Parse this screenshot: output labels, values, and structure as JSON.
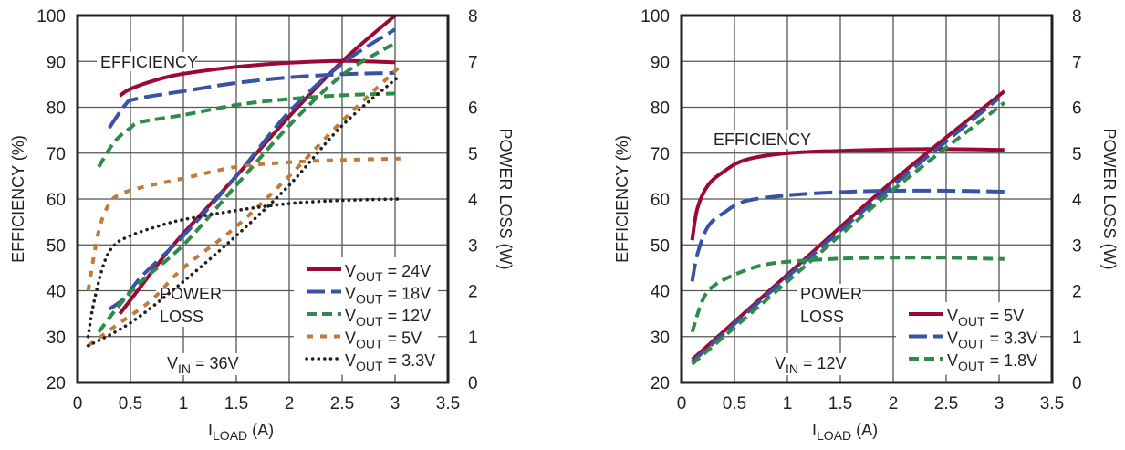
{
  "chart_data": [
    {
      "type": "line",
      "title": "",
      "xlabel": "I_LOAD (A)",
      "xlabel_main": "I",
      "xlabel_sub": "LOAD",
      "xlabel_unit": " (A)",
      "ylabel": "EFFICIENCY (%)",
      "y2label": "POWER LOSS (W)",
      "xlim": [
        0,
        3.5
      ],
      "ylim": [
        20,
        100
      ],
      "y2lim": [
        0,
        8
      ],
      "x_ticks": [
        "0",
        "0.5",
        "1",
        "1.5",
        "2",
        "2.5",
        "3",
        "3.5"
      ],
      "y_ticks": [
        "20",
        "30",
        "40",
        "50",
        "60",
        "70",
        "80",
        "90",
        "100"
      ],
      "y2_ticks": [
        "0",
        "1",
        "2",
        "3",
        "4",
        "5",
        "6",
        "7",
        "8"
      ],
      "grid": true,
      "legend_position": "bottom-right",
      "annotations": {
        "efficiency": "EFFICIENCY",
        "power_loss_1": "POWER",
        "power_loss_2": "LOSS",
        "vin_main": "V",
        "vin_sub": "IN",
        "vin_value": " = 36V"
      },
      "series": [
        {
          "name": "VOUT = 24V",
          "label_sub": "OUT",
          "label_value": " = 24V",
          "color": "#9b0a33",
          "style": "solid",
          "efficiency": [
            [
              0.4,
              82.5
            ],
            [
              0.5,
              84
            ],
            [
              0.75,
              86
            ],
            [
              1,
              87.3
            ],
            [
              1.5,
              88.8
            ],
            [
              2,
              89.7
            ],
            [
              2.5,
              90.1
            ],
            [
              3,
              89.8
            ]
          ],
          "power_loss": [
            [
              0.4,
              1.5
            ],
            [
              0.6,
              2.1
            ],
            [
              0.8,
              2.7
            ],
            [
              1,
              3.25
            ],
            [
              1.5,
              4.5
            ],
            [
              2,
              5.8
            ],
            [
              2.5,
              7.0
            ],
            [
              3,
              8.0
            ]
          ]
        },
        {
          "name": "VOUT = 18V",
          "label_sub": "OUT",
          "label_value": " = 18V",
          "color": "#3953a4",
          "style": "longdash",
          "efficiency": [
            [
              0.3,
              75.5
            ],
            [
              0.45,
              80.5
            ],
            [
              0.55,
              81.8
            ],
            [
              1,
              83.5
            ],
            [
              1.5,
              85.3
            ],
            [
              2,
              86.5
            ],
            [
              2.5,
              87.2
            ],
            [
              3,
              87.5
            ]
          ],
          "power_loss": [
            [
              0.3,
              1.6
            ],
            [
              0.45,
              1.85
            ],
            [
              0.6,
              2.3
            ],
            [
              1,
              3.2
            ],
            [
              1.5,
              4.5
            ],
            [
              2,
              5.9
            ],
            [
              2.5,
              6.95
            ],
            [
              3,
              7.7
            ]
          ]
        },
        {
          "name": "VOUT = 12V",
          "label_sub": "OUT",
          "label_value": " = 12V",
          "color": "#2e8b4a",
          "style": "dash",
          "efficiency": [
            [
              0.2,
              67
            ],
            [
              0.35,
              72.5
            ],
            [
              0.5,
              75.5
            ],
            [
              0.6,
              76.8
            ],
            [
              1,
              78.3
            ],
            [
              1.5,
              80.5
            ],
            [
              2,
              81.8
            ],
            [
              2.5,
              82.6
            ],
            [
              3,
              83
            ]
          ],
          "power_loss": [
            [
              0.2,
              1.1
            ],
            [
              0.4,
              1.7
            ],
            [
              0.6,
              2.2
            ],
            [
              1,
              3.0
            ],
            [
              1.5,
              4.3
            ],
            [
              2,
              5.6
            ],
            [
              2.5,
              6.7
            ],
            [
              3,
              7.4
            ]
          ]
        },
        {
          "name": "VOUT = 5V",
          "label_sub": "OUT",
          "label_value": " = 5V",
          "color": "#c07a3a",
          "style": "shortdash",
          "efficiency": [
            [
              0.1,
              40
            ],
            [
              0.2,
              53
            ],
            [
              0.3,
              59
            ],
            [
              0.4,
              61
            ],
            [
              0.6,
              62.5
            ],
            [
              1,
              64.5
            ],
            [
              1.5,
              67
            ],
            [
              2,
              68
            ],
            [
              2.5,
              68.5
            ],
            [
              3.05,
              68.8
            ]
          ],
          "power_loss": [
            [
              0.1,
              0.8
            ],
            [
              0.4,
              1.3
            ],
            [
              0.7,
              1.8
            ],
            [
              1,
              2.5
            ],
            [
              1.5,
              3.4
            ],
            [
              2,
              4.5
            ],
            [
              2.5,
              5.7
            ],
            [
              3.05,
              6.9
            ]
          ]
        },
        {
          "name": "VOUT = 3.3V",
          "label_sub": "OUT",
          "label_value": " = 3.3V",
          "color": "#231f20",
          "style": "dot",
          "efficiency": [
            [
              0.1,
              30
            ],
            [
              0.15,
              37
            ],
            [
              0.25,
              46
            ],
            [
              0.35,
              50
            ],
            [
              0.5,
              52
            ],
            [
              0.75,
              54
            ],
            [
              1,
              55.5
            ],
            [
              1.5,
              57.5
            ],
            [
              2,
              59
            ],
            [
              2.5,
              59.7
            ],
            [
              3.05,
              60
            ]
          ],
          "power_loss": [
            [
              0.1,
              0.8
            ],
            [
              0.5,
              1.3
            ],
            [
              1,
              2.2
            ],
            [
              1.5,
              3.2
            ],
            [
              2,
              4.3
            ],
            [
              2.5,
              5.6
            ],
            [
              3.05,
              6.7
            ]
          ]
        }
      ]
    },
    {
      "type": "line",
      "title": "",
      "xlabel": "I_LOAD (A)",
      "xlabel_main": "I",
      "xlabel_sub": "LOAD",
      "xlabel_unit": " (A)",
      "ylabel": "EFFICIENCY (%)",
      "y2label": "POWER LOSS (W)",
      "xlim": [
        0,
        3.5
      ],
      "ylim": [
        20,
        100
      ],
      "y2lim": [
        0,
        8
      ],
      "x_ticks": [
        "0",
        "0.5",
        "1",
        "1.5",
        "2",
        "2.5",
        "3",
        "3.5"
      ],
      "y_ticks": [
        "20",
        "30",
        "40",
        "50",
        "60",
        "70",
        "80",
        "90",
        "100"
      ],
      "y2_ticks": [
        "0",
        "1",
        "2",
        "3",
        "4",
        "5",
        "6",
        "7",
        "8"
      ],
      "grid": true,
      "legend_position": "bottom-right",
      "annotations": {
        "efficiency": "EFFICIENCY",
        "power_loss_1": "POWER",
        "power_loss_2": "LOSS",
        "vin_main": "V",
        "vin_sub": "IN",
        "vin_value": " = 12V"
      },
      "series": [
        {
          "name": "VOUT = 5V",
          "label_sub": "OUT",
          "label_value": " = 5V",
          "color": "#9b0a33",
          "style": "solid",
          "efficiency": [
            [
              0.1,
              51
            ],
            [
              0.15,
              58
            ],
            [
              0.25,
              63
            ],
            [
              0.4,
              66
            ],
            [
              0.6,
              68.5
            ],
            [
              1,
              70
            ],
            [
              1.5,
              70.5
            ],
            [
              2,
              70.8
            ],
            [
              2.5,
              70.9
            ],
            [
              3.05,
              70.7
            ]
          ],
          "power_loss": [
            [
              0.1,
              0.5
            ],
            [
              1,
              2.35
            ],
            [
              2,
              4.4
            ],
            [
              3.05,
              6.35
            ]
          ]
        },
        {
          "name": "VOUT = 3.3V",
          "label_sub": "OUT",
          "label_value": " = 3.3V",
          "color": "#3953a4",
          "style": "longdash",
          "efficiency": [
            [
              0.1,
              42
            ],
            [
              0.15,
              48
            ],
            [
              0.25,
              54
            ],
            [
              0.4,
              57
            ],
            [
              0.6,
              59.5
            ],
            [
              1,
              60.8
            ],
            [
              1.5,
              61.5
            ],
            [
              2,
              61.8
            ],
            [
              2.5,
              61.8
            ],
            [
              3.05,
              61.6
            ]
          ],
          "power_loss": [
            [
              0.1,
              0.45
            ],
            [
              1,
              2.3
            ],
            [
              2,
              4.3
            ],
            [
              3.0,
              6.2
            ]
          ]
        },
        {
          "name": "VOUT = 1.8V",
          "label_sub": "OUT",
          "label_value": " = 1.8V",
          "color": "#2e8b4a",
          "style": "dash",
          "efficiency": [
            [
              0.1,
              31
            ],
            [
              0.2,
              38
            ],
            [
              0.3,
              41
            ],
            [
              0.5,
              43.5
            ],
            [
              0.75,
              45.5
            ],
            [
              1,
              46.3
            ],
            [
              1.5,
              47
            ],
            [
              2,
              47.2
            ],
            [
              2.5,
              47.2
            ],
            [
              3.05,
              46.9
            ]
          ],
          "power_loss": [
            [
              0.1,
              0.4
            ],
            [
              1,
              2.2
            ],
            [
              2,
              4.2
            ],
            [
              3.05,
              6.1
            ]
          ]
        }
      ]
    }
  ]
}
